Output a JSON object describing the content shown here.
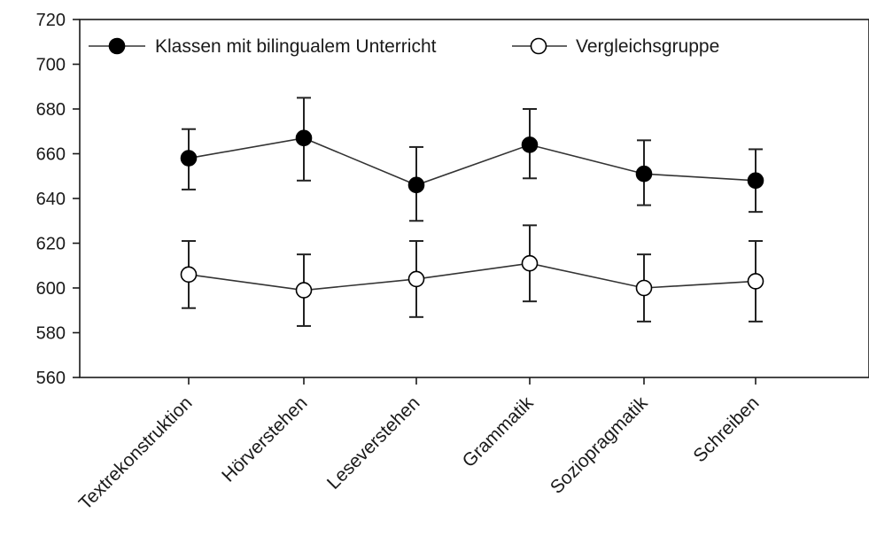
{
  "chart_data": {
    "type": "line",
    "title": "",
    "xlabel": "",
    "ylabel": "",
    "ylim": [
      560,
      720
    ],
    "yticks": [
      560,
      580,
      600,
      620,
      640,
      660,
      680,
      700,
      720
    ],
    "grid": false,
    "legend_position": "top-left",
    "categories": [
      "Textrekonstruktion",
      "Hörverstehen",
      "Leseverstehen",
      "Grammatik",
      "Soziopragmatik",
      "Schreiben"
    ],
    "series": [
      {
        "name": "Klassen mit bilingualem Unterricht",
        "marker": "filled-circle",
        "color": "#000000",
        "values": [
          658,
          667,
          646,
          664,
          651,
          648
        ],
        "error_low": [
          644,
          648,
          630,
          649,
          637,
          634
        ],
        "error_high": [
          671,
          685,
          663,
          680,
          666,
          662
        ]
      },
      {
        "name": "Vergleichsgruppe",
        "marker": "open-circle",
        "color": "#000000",
        "values": [
          606,
          599,
          604,
          611,
          600,
          603
        ],
        "error_low": [
          591,
          583,
          587,
          594,
          585,
          585
        ],
        "error_high": [
          621,
          615,
          621,
          628,
          615,
          621
        ]
      }
    ]
  }
}
